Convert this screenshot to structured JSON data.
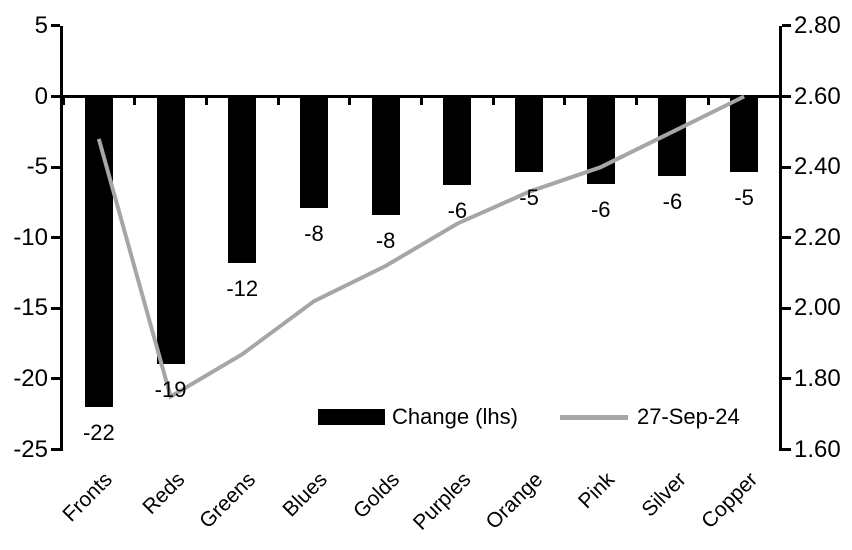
{
  "chart_data": {
    "type": "bar",
    "title": "",
    "categories": [
      "Fronts",
      "Reds",
      "Greens",
      "Blues",
      "Golds",
      "Purples",
      "Orange",
      "Pink",
      "Silver",
      "Copper"
    ],
    "series": [
      {
        "name": "Change (lhs)",
        "type": "bar",
        "axis": "left",
        "values": [
          -22,
          -19,
          -12,
          -8,
          -8,
          -6,
          -5,
          -6,
          -6,
          -5
        ],
        "labels": [
          "-22",
          "-19",
          "-12",
          "-8",
          "-8",
          "-6",
          "-5",
          "-6",
          "-6",
          "-5"
        ],
        "values_precise": [
          -22,
          -19,
          -11.8,
          -7.9,
          -8.4,
          -6.3,
          -5.4,
          -6.2,
          -5.7,
          -5.4
        ],
        "color": "#000000"
      },
      {
        "name": "27-Sep-24",
        "type": "line",
        "axis": "right",
        "values": [
          2.48,
          1.75,
          1.87,
          2.02,
          2.12,
          2.24,
          2.33,
          2.4,
          2.5,
          2.6
        ],
        "color": "#a6a6a6"
      }
    ],
    "left_axis": {
      "min": -25,
      "max": 5,
      "step": 5,
      "tick_labels": [
        "5",
        "0",
        "-5",
        "-10",
        "-15",
        "-20",
        "-25"
      ]
    },
    "right_axis": {
      "min": 1.6,
      "max": 2.8,
      "step": 0.2,
      "tick_labels": [
        "2.80",
        "2.60",
        "2.40",
        "2.20",
        "2.00",
        "1.80",
        "1.60"
      ]
    },
    "legend": {
      "position": "bottom-inside",
      "items": [
        {
          "label": "Change (lhs)",
          "swatch": "bar",
          "color": "#000000"
        },
        {
          "label": "27-Sep-24",
          "swatch": "line",
          "color": "#a6a6a6"
        }
      ]
    },
    "grid": false
  },
  "colors": {
    "bar": "#000000",
    "line": "#a6a6a6",
    "axis": "#000000",
    "background": "#ffffff"
  }
}
